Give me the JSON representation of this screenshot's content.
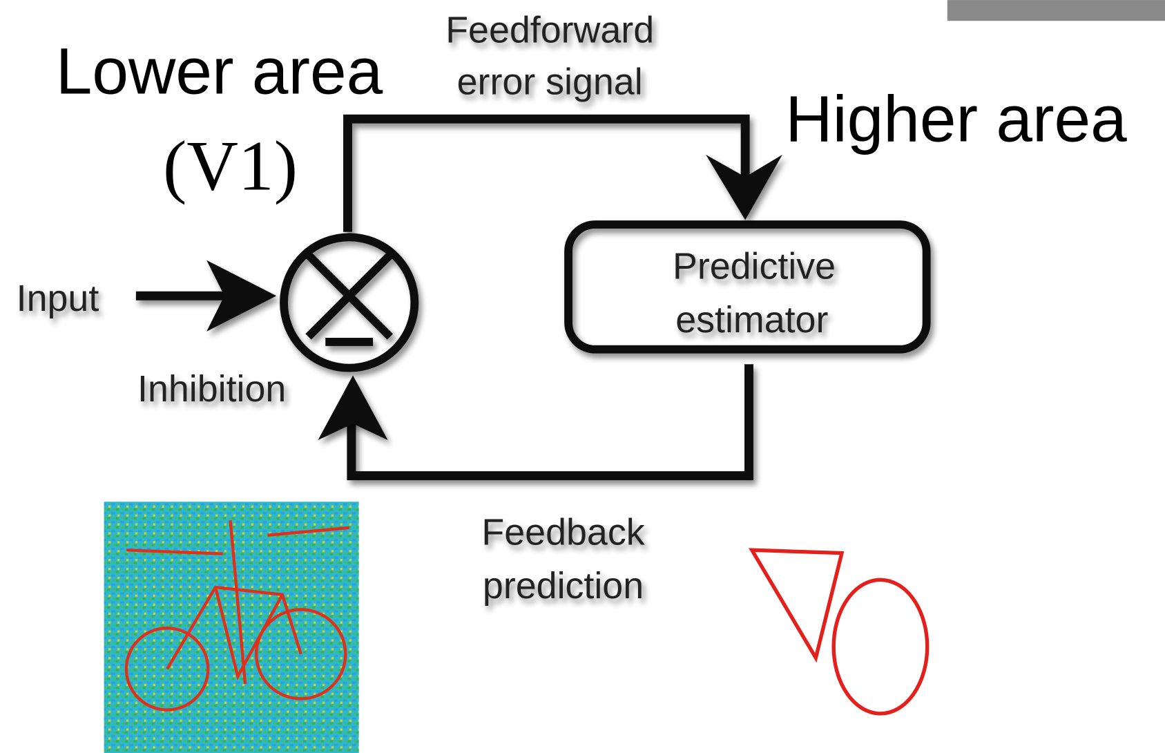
{
  "lower_area": {
    "title": "Lower area",
    "subtitle": "(V1)"
  },
  "feedforward": {
    "line1": "Feedforward",
    "line2": "error signal"
  },
  "higher_area": "Higher area",
  "input": "Input",
  "inhibition": "Inhibition",
  "estimator": {
    "line1": "Predictive",
    "line2": "estimator"
  },
  "feedback": {
    "line1": "Feedback",
    "line2": "prediction"
  }
}
